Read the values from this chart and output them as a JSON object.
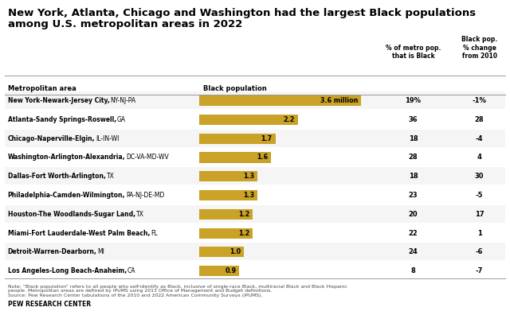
{
  "title_line1": "New York, Atlanta, Chicago and Washington had the largest Black populations",
  "title_line2": "among U.S. metropolitan areas in 2022",
  "metros": [
    {
      "name": "New York-Newark-Jersey City,",
      "state": " NY-NJ-PA",
      "value": 3.6,
      "label": "3.6 million",
      "pct_black": "19%",
      "pct_change": "-1%"
    },
    {
      "name": "Atlanta-Sandy Springs-Roswell,",
      "state": " GA",
      "value": 2.2,
      "label": "2.2",
      "pct_black": "36",
      "pct_change": "28"
    },
    {
      "name": "Chicago-Naperville-Elgin,",
      "state": " IL-IN-WI",
      "value": 1.7,
      "label": "1.7",
      "pct_black": "18",
      "pct_change": "-4"
    },
    {
      "name": "Washington-Arlington-Alexandria,",
      "state": " DC-VA-MD-WV",
      "value": 1.6,
      "label": "1.6",
      "pct_black": "28",
      "pct_change": "4"
    },
    {
      "name": "Dallas-Fort Worth-Arlington,",
      "state": " TX",
      "value": 1.3,
      "label": "1.3",
      "pct_black": "18",
      "pct_change": "30"
    },
    {
      "name": "Philadelphia-Camden-Wilmington,",
      "state": " PA-NJ-DE-MD",
      "value": 1.3,
      "label": "1.3",
      "pct_black": "23",
      "pct_change": "-5"
    },
    {
      "name": "Houston-The Woodlands-Sugar Land,",
      "state": " TX",
      "value": 1.2,
      "label": "1.2",
      "pct_black": "20",
      "pct_change": "17"
    },
    {
      "name": "Miami-Fort Lauderdale-West Palm Beach,",
      "state": " FL",
      "value": 1.2,
      "label": "1.2",
      "pct_black": "22",
      "pct_change": "1"
    },
    {
      "name": "Detroit-Warren-Dearborn,",
      "state": " MI",
      "value": 1.0,
      "label": "1.0",
      "pct_black": "24",
      "pct_change": "-6"
    },
    {
      "name": "Los Angeles-Long Beach-Anaheim,",
      "state": " CA",
      "value": 0.9,
      "label": "0.9",
      "pct_black": "8",
      "pct_change": "-7"
    }
  ],
  "col_header_metro": "Metropolitan area",
  "col_header_pop": "Black population",
  "col_header_pct": "% of metro pop.\nthat is Black",
  "col_header_change": "Black pop.\n% change\nfrom 2010",
  "bar_color": "#C9A227",
  "note_text": "Note: “Black population” refers to all people who self-identify as Black, inclusive of single-race Black, multiracial Black and Black Hispanic\npeople. Metropolitan areas are defined by IPUMS using 2013 Office of Management and Budget definitions.\nSource: Pew Research Center tabulations of the 2010 and 2022 American Community Surveys (IPUMS).",
  "source_label": "PEW RESEARCH CENTER",
  "bg_color": "#FFFFFF",
  "text_color": "#000000",
  "bar_max": 3.8,
  "figsize": [
    6.4,
    3.96
  ],
  "dpi": 100
}
